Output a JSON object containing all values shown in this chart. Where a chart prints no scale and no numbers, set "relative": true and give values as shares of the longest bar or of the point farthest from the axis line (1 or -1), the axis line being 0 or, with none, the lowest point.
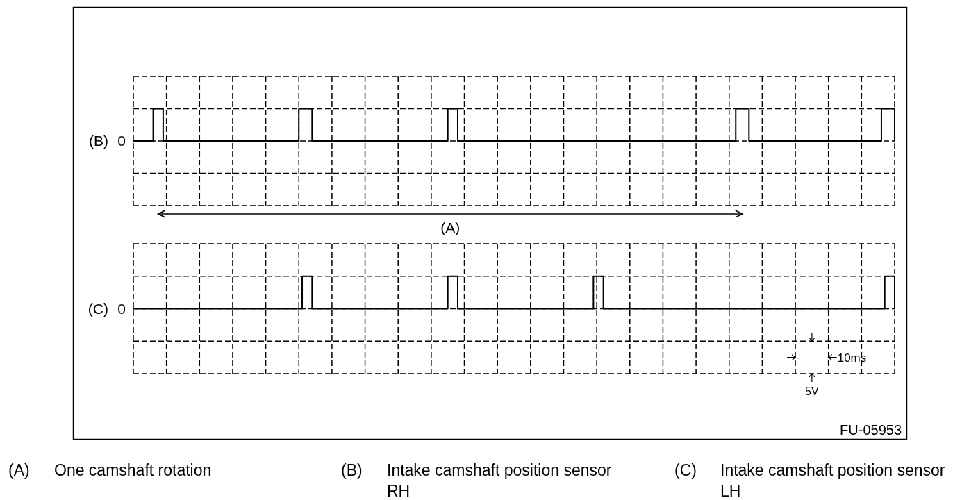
{
  "chart_data": [
    {
      "type": "step",
      "relative": true,
      "ylabel": "(B)",
      "color": "#000000",
      "grid": true,
      "annotations": [
        "0",
        "(A)"
      ],
      "categories": [
        null,
        null,
        null,
        null,
        null,
        null,
        null,
        null,
        null,
        null,
        null,
        null,
        null,
        null,
        null,
        null,
        null,
        null,
        null,
        null,
        null,
        null,
        null,
        null,
        null,
        null,
        null,
        null,
        null,
        null,
        null,
        null,
        null,
        null,
        null,
        null,
        null,
        null,
        null,
        null,
        null,
        null,
        null,
        null,
        null,
        null,
        null,
        null,
        null,
        null,
        null,
        null,
        null,
        null,
        null,
        null,
        null,
        null,
        null,
        null,
        null,
        null,
        null,
        null,
        null,
        null,
        null,
        null,
        null,
        null,
        null,
        null,
        null,
        null,
        null,
        null,
        null,
        null,
        null,
        null,
        null,
        null,
        null,
        null,
        null,
        null,
        null,
        null,
        null,
        null,
        null,
        null,
        null,
        null,
        null,
        null,
        null,
        null,
        null,
        null,
        null,
        null,
        null,
        null,
        null,
        null,
        null,
        null,
        null,
        null,
        null,
        null,
        null,
        null,
        null,
        null,
        null,
        null,
        null,
        null,
        null,
        null,
        null,
        null,
        null,
        null,
        null,
        null,
        null,
        null,
        null,
        null,
        null,
        null,
        null,
        null,
        null,
        null,
        null,
        null,
        null,
        null,
        null,
        null,
        null,
        null,
        null,
        null,
        null,
        null,
        null,
        null,
        null,
        null,
        null,
        null,
        null,
        null,
        null,
        null,
        null,
        null,
        null,
        null,
        null,
        null,
        null,
        null,
        null,
        null,
        null,
        null,
        null,
        null,
        null,
        null,
        null,
        null,
        null,
        null,
        null,
        null,
        null,
        null,
        null,
        null,
        null,
        null,
        null,
        null,
        null,
        null,
        null,
        null,
        null,
        null,
        null,
        null,
        null,
        null,
        null,
        null,
        null,
        null,
        null,
        null,
        null,
        null,
        null,
        null,
        null,
        null,
        null,
        null,
        null,
        null,
        null,
        null,
        null,
        null,
        null,
        null,
        null,
        null,
        null,
        null,
        null,
        null,
        null,
        null,
        null
      ],
      "values": [
        0,
        0,
        0,
        0,
        0,
        0,
        1,
        1,
        1,
        0,
        0,
        0,
        0,
        0,
        0,
        0,
        0,
        0,
        0,
        0,
        0,
        0,
        0,
        0,
        0,
        0,
        0,
        0,
        0,
        0,
        0,
        0,
        0,
        0,
        0,
        0,
        0,
        0,
        0,
        0,
        0,
        0,
        0,
        0,
        0,
        0,
        0,
        0,
        0,
        0,
        1,
        1,
        1,
        1,
        0,
        0,
        0,
        0,
        0,
        0,
        0,
        0,
        0,
        0,
        0,
        0,
        0,
        0,
        0,
        0,
        0,
        0,
        0,
        0,
        0,
        0,
        0,
        0,
        0,
        0,
        0,
        0,
        0,
        0,
        0,
        0,
        0,
        0,
        0,
        0,
        0,
        0,
        0,
        0,
        0,
        1,
        1,
        1,
        0,
        0,
        0,
        0,
        0,
        0,
        0,
        0,
        0,
        0,
        0,
        0,
        0,
        0,
        0,
        0,
        0,
        0,
        0,
        0,
        0,
        0,
        0,
        0,
        0,
        0,
        0,
        0,
        0,
        0,
        0,
        0,
        0,
        0,
        0,
        0,
        0,
        0,
        0,
        0,
        0,
        0,
        0,
        0,
        0,
        0,
        0,
        0,
        0,
        0,
        0,
        0,
        0,
        0,
        0,
        0,
        0,
        0,
        0,
        0,
        0,
        0,
        0,
        0,
        0,
        0,
        0,
        0,
        0,
        0,
        0,
        0,
        0,
        0,
        0,
        0,
        0,
        0,
        0,
        0,
        0,
        0,
        0,
        0,
        1,
        1,
        1,
        1,
        0,
        0,
        0,
        0,
        0,
        0,
        0,
        0,
        0,
        0,
        0,
        0,
        0,
        0,
        0,
        0,
        0,
        0,
        0,
        0,
        0,
        0,
        0,
        0,
        0,
        0,
        0,
        0,
        0,
        0,
        0,
        0,
        0,
        0,
        0,
        0,
        0,
        0,
        0,
        0,
        1,
        1,
        1,
        1,
        0
      ]
    },
    {
      "type": "step",
      "relative": true,
      "ylabel": "(C)",
      "color": "#000000",
      "grid": true,
      "annotations": [
        "0",
        "10ms",
        "5V",
        "FU-05953"
      ],
      "categories": [
        null,
        null,
        null,
        null,
        null,
        null,
        null,
        null,
        null,
        null,
        null,
        null,
        null,
        null,
        null,
        null,
        null,
        null,
        null,
        null,
        null,
        null,
        null,
        null,
        null,
        null,
        null,
        null,
        null,
        null,
        null,
        null,
        null,
        null,
        null,
        null,
        null,
        null,
        null,
        null,
        null,
        null,
        null,
        null,
        null,
        null,
        null,
        null,
        null,
        null,
        null,
        null,
        null,
        null,
        null,
        null,
        null,
        null,
        null,
        null,
        null,
        null,
        null,
        null,
        null,
        null,
        null,
        null,
        null,
        null,
        null,
        null,
        null,
        null,
        null,
        null,
        null,
        null,
        null,
        null,
        null,
        null,
        null,
        null,
        null,
        null,
        null,
        null,
        null,
        null,
        null,
        null,
        null,
        null,
        null,
        null,
        null,
        null,
        null,
        null,
        null,
        null,
        null,
        null,
        null,
        null,
        null,
        null,
        null,
        null,
        null,
        null,
        null,
        null,
        null,
        null,
        null,
        null,
        null,
        null,
        null,
        null,
        null,
        null,
        null,
        null,
        null,
        null,
        null,
        null,
        null,
        null,
        null,
        null,
        null,
        null,
        null,
        null,
        null,
        null,
        null,
        null,
        null,
        null,
        null,
        null,
        null,
        null,
        null,
        null,
        null,
        null,
        null,
        null,
        null,
        null,
        null,
        null,
        null,
        null,
        null,
        null,
        null,
        null,
        null,
        null,
        null,
        null,
        null,
        null,
        null,
        null,
        null,
        null,
        null,
        null,
        null,
        null,
        null,
        null,
        null,
        null,
        null,
        null,
        null,
        null,
        null,
        null,
        null,
        null,
        null,
        null,
        null,
        null,
        null,
        null,
        null,
        null,
        null,
        null,
        null,
        null,
        null,
        null,
        null,
        null,
        null,
        null,
        null,
        null,
        null,
        null,
        null,
        null,
        null,
        null,
        null,
        null,
        null,
        null,
        null,
        null,
        null,
        null,
        null,
        null,
        null,
        null,
        null,
        null,
        null
      ],
      "values": [
        0,
        0,
        0,
        0,
        0,
        0,
        0,
        0,
        0,
        0,
        0,
        0,
        0,
        0,
        0,
        0,
        0,
        0,
        0,
        0,
        0,
        0,
        0,
        0,
        0,
        0,
        0,
        0,
        0,
        0,
        0,
        0,
        0,
        0,
        0,
        0,
        0,
        0,
        0,
        0,
        0,
        0,
        0,
        0,
        0,
        0,
        0,
        0,
        0,
        0,
        0,
        1,
        1,
        1,
        0,
        0,
        0,
        0,
        0,
        0,
        0,
        0,
        0,
        0,
        0,
        0,
        0,
        0,
        0,
        0,
        0,
        0,
        0,
        0,
        0,
        0,
        0,
        0,
        0,
        0,
        0,
        0,
        0,
        0,
        0,
        0,
        0,
        0,
        0,
        0,
        0,
        0,
        0,
        0,
        0,
        1,
        1,
        1,
        0,
        0,
        0,
        0,
        0,
        0,
        0,
        0,
        0,
        0,
        0,
        0,
        0,
        0,
        0,
        0,
        0,
        0,
        0,
        0,
        0,
        0,
        0,
        0,
        0,
        0,
        0,
        0,
        0,
        0,
        0,
        0,
        0,
        0,
        0,
        0,
        0,
        0,
        0,
        0,
        0,
        1,
        1,
        1,
        0,
        0,
        0,
        0,
        0,
        0,
        0,
        0,
        0,
        0,
        0,
        0,
        0,
        0,
        0,
        0,
        0,
        0,
        0,
        0,
        0,
        0,
        0,
        0,
        0,
        0,
        0,
        0,
        0,
        0,
        0,
        0,
        0,
        0,
        0,
        0,
        0,
        0,
        0,
        0,
        0,
        0,
        0,
        0,
        0,
        0,
        0,
        0,
        0,
        0,
        0,
        0,
        0,
        0,
        0,
        0,
        0,
        0,
        0,
        0,
        0,
        0,
        0,
        0,
        0,
        0,
        0,
        0,
        0,
        0,
        0,
        0,
        0,
        0,
        0,
        0,
        0,
        0,
        0,
        0,
        0,
        0,
        0,
        0,
        0,
        1,
        1,
        1,
        0
      ]
    },
    {
      "type": "other",
      "annotations": [
        "(A) One camshaft rotation",
        "(B) Intake camshaft position sensor RH",
        "(C) Intake camshaft position sensor LH"
      ]
    }
  ]
}
